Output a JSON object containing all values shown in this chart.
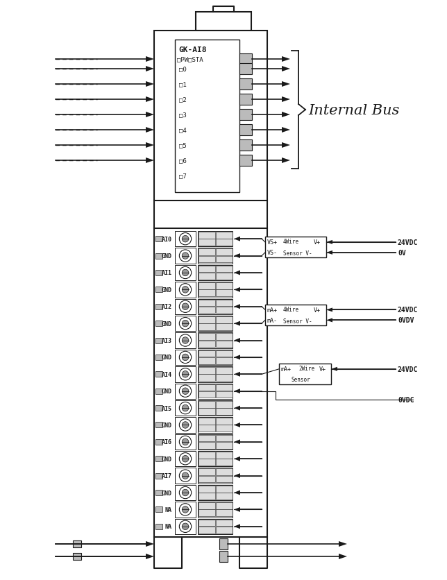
{
  "bg_color": "#ffffff",
  "lc": "#1a1a1a",
  "tc": "#1a1a1a",
  "module_label": "GK-AI8",
  "status_label": "□PW□STA",
  "channel_labels": [
    "□0",
    "□1",
    "□2",
    "□3",
    "□4",
    "□5",
    "□6",
    "□7"
  ],
  "internal_bus_label": "Internal Bus",
  "terminal_rows": [
    "AI0",
    "GND",
    "AI1",
    "GND",
    "AI2",
    "GND",
    "AI3",
    "GND",
    "AI4",
    "GND",
    "AI5",
    "GND",
    "AI6",
    "GND",
    "AI7",
    "GND",
    "NA",
    "NA"
  ],
  "voltage_labels1": [
    "24VDC",
    "0V"
  ],
  "voltage_labels2": [
    "24VDC",
    "0VDV"
  ],
  "voltage_labels3": [
    "24VDC",
    "0VDC"
  ],
  "box1_line1": "VS+",
  "box1_line1b": "4Wire",
  "box1_line1c": "V+",
  "box1_line2": "VS-",
  "box1_line2b": "Sensor V-",
  "box2_line1": "mA+",
  "box2_line1b": "4Wire",
  "box2_line1c": "V+",
  "box2_line2": "mA-",
  "box2_line2b": "Sensor V-",
  "box3_line1": "mA+",
  "box3_line1b": "2Wire",
  "box3_line1c": "V+",
  "box3_line2": "Sensor"
}
